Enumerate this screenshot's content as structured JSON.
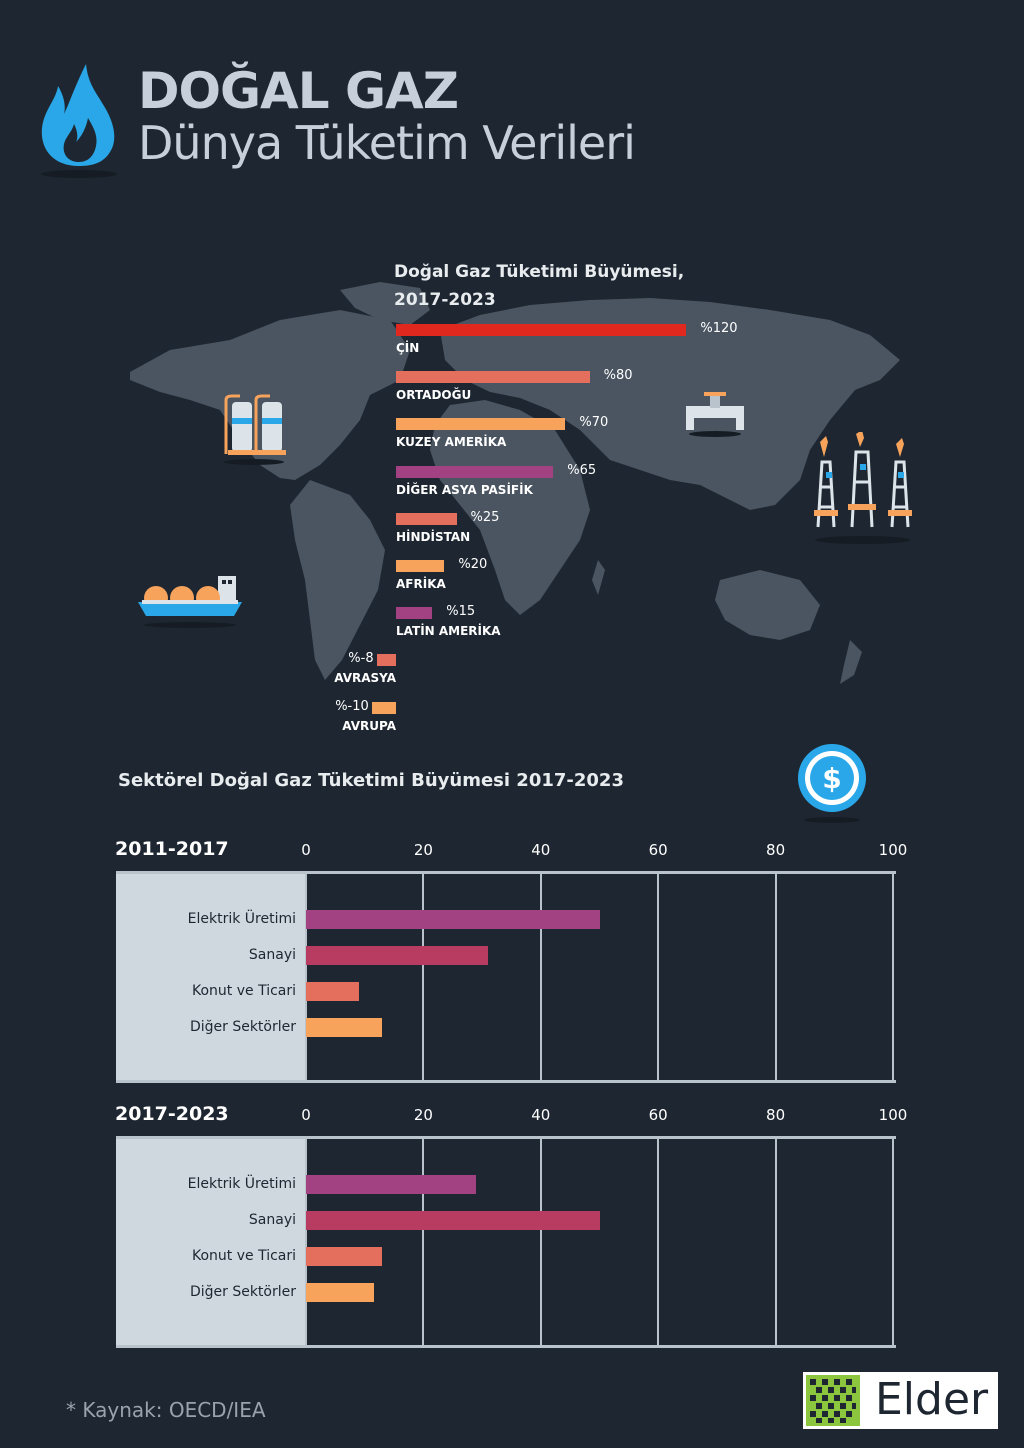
{
  "header": {
    "title": "DOĞAL GAZ",
    "subtitle": "Dünya Tüketim Verileri"
  },
  "map_chart_title_line1": "Doğal Gaz Tüketimi Büyümesi,",
  "map_chart_title_line2": "2017-2023",
  "sector_title": "Sektörel Doğal Gaz Tüketimi Büyümesi 2017-2023",
  "source": "* Kaynak: OECD/IEA",
  "logo_text": "Elder",
  "colors": {
    "background": "#1e2731",
    "map": "#4a5561",
    "red": "#e0281f",
    "salmon": "#e46f5c",
    "orange": "#f7a35c",
    "purple": "#a34282",
    "crimson": "#b83b62",
    "panel": "#cfd7df",
    "flame": "#2aa7e8"
  },
  "chart_data": [
    {
      "type": "bar",
      "title": "Doğal Gaz Tüketimi Büyümesi, 2017-2023",
      "categories": [
        "ÇİN",
        "ORTADOĞU",
        "KUZEY AMERİKA",
        "DİĞER ASYA PASİFİK",
        "HİNDİSTAN",
        "AFRİKA",
        "LATİN AMERİKA",
        "AVRASYA",
        "AVRUPA"
      ],
      "values": [
        120,
        80,
        70,
        65,
        25,
        20,
        15,
        -8,
        -10
      ],
      "value_labels": [
        "%120",
        "%80",
        "%70",
        "%65",
        "%25",
        "%20",
        "%15",
        "%-8",
        "%-10"
      ],
      "bar_colors": [
        "#e0281f",
        "#e46f5c",
        "#f7a35c",
        "#a34282",
        "#e46f5c",
        "#f7a35c",
        "#a34282",
        "#e46f5c",
        "#f7a35c"
      ]
    },
    {
      "type": "bar",
      "title": "2011-2017",
      "categories": [
        "Elektrik Üretimi",
        "Sanayi",
        "Konut ve Ticari",
        "Diğer Sektörler"
      ],
      "values": [
        50,
        31,
        9,
        13
      ],
      "bar_colors": [
        "#a34282",
        "#b83b62",
        "#e46f5c",
        "#f7a35c"
      ],
      "xlim": [
        0,
        100
      ],
      "ticks": [
        "0",
        "20",
        "40",
        "60",
        "80",
        "100"
      ]
    },
    {
      "type": "bar",
      "title": "2017-2023",
      "categories": [
        "Elektrik Üretimi",
        "Sanayi",
        "Konut ve Ticari",
        "Diğer Sektörler"
      ],
      "values": [
        29,
        50,
        13,
        11.5
      ],
      "bar_colors": [
        "#a34282",
        "#b83b62",
        "#e46f5c",
        "#f7a35c"
      ],
      "xlim": [
        0,
        100
      ],
      "ticks": [
        "0",
        "20",
        "40",
        "60",
        "80",
        "100"
      ]
    }
  ]
}
